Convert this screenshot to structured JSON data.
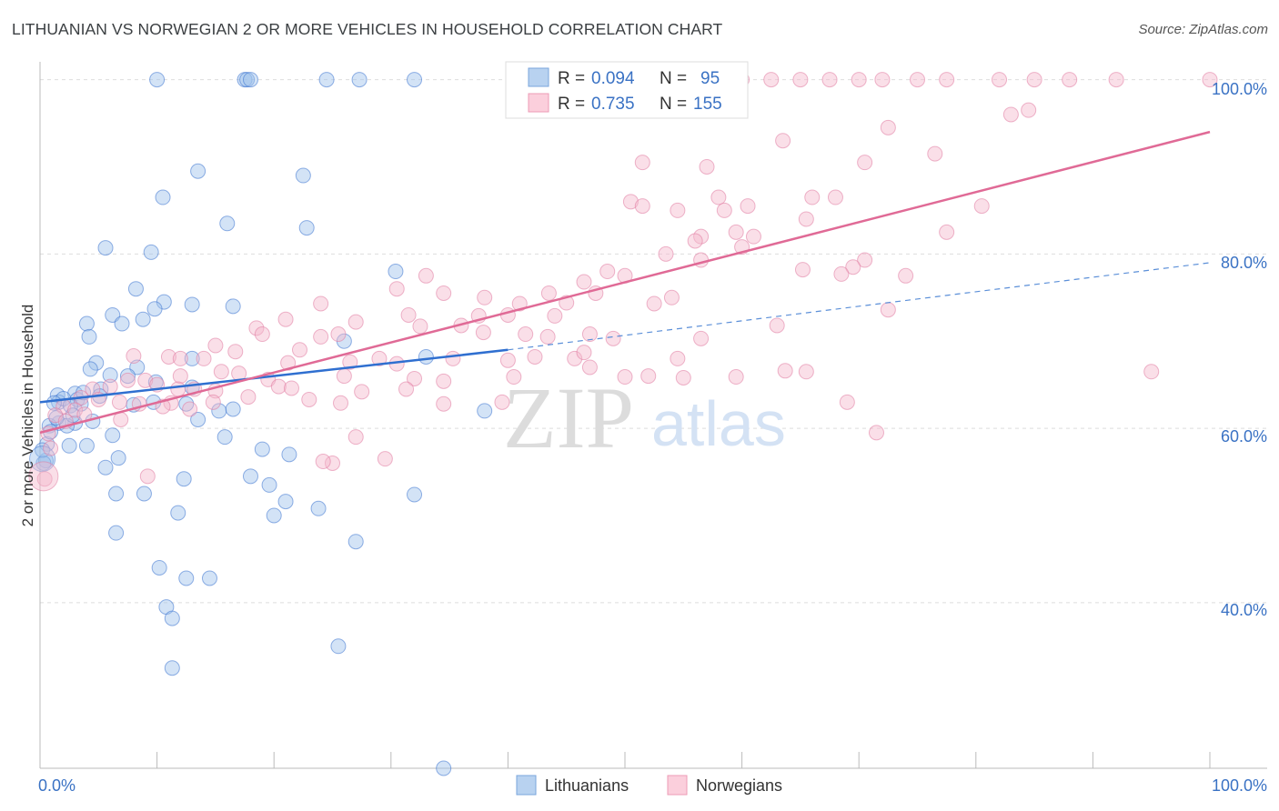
{
  "header": {
    "title": "LITHUANIAN VS NORWEGIAN 2 OR MORE VEHICLES IN HOUSEHOLD CORRELATION CHART",
    "source": "Source: ZipAtlas.com"
  },
  "watermark": {
    "zip": "ZIP",
    "atlas": "atlas"
  },
  "legend_box": {
    "rows": [
      {
        "r_label": "R =",
        "r_value": "0.094",
        "n_label": "N =",
        "n_value": "95",
        "color": "#9ec0ea"
      },
      {
        "r_label": "R =",
        "r_value": "0.735",
        "n_label": "N =",
        "n_value": "155",
        "color": "#f5b8cc"
      }
    ]
  },
  "bottom_legend": [
    {
      "label": "Lithuanians",
      "color": "#9ec0ea"
    },
    {
      "label": "Norwegians",
      "color": "#f5b8cc"
    }
  ],
  "chart_data": {
    "type": "scatter",
    "title": "LITHUANIAN VS NORWEGIAN 2 OR MORE VEHICLES IN HOUSEHOLD CORRELATION CHART",
    "xlabel": "",
    "ylabel": "2 or more Vehicles in Household",
    "xlim": [
      0,
      100
    ],
    "ylim": [
      21,
      101
    ],
    "x_tick_labels": [
      "0.0%",
      "100.0%"
    ],
    "y_ticks": [
      40,
      60,
      80,
      100
    ],
    "y_tick_labels": [
      "40.0%",
      "60.0%",
      "80.0%",
      "100.0%"
    ],
    "grid": true,
    "legend_placement": "top-center",
    "series": [
      {
        "name": "Lithuanians",
        "color": "#3a72d0",
        "fill": "#9ec0ea",
        "trend": {
          "x0": 0,
          "y0": 63,
          "x1": 40,
          "y1": 69,
          "dashed_to_x": 100,
          "dashed_to_y": 79
        },
        "points": [
          [
            10,
            100
          ],
          [
            17.5,
            100
          ],
          [
            17.7,
            100
          ],
          [
            18,
            100
          ],
          [
            24.5,
            100
          ],
          [
            27.3,
            100
          ],
          [
            32,
            100
          ],
          [
            13.5,
            89.5
          ],
          [
            22.5,
            89
          ],
          [
            10.5,
            86.5
          ],
          [
            16,
            83.5
          ],
          [
            22.8,
            83
          ],
          [
            5.6,
            80.7
          ],
          [
            9.5,
            80.2
          ],
          [
            30.4,
            78
          ],
          [
            8.2,
            76
          ],
          [
            10.6,
            74.5
          ],
          [
            16.5,
            74
          ],
          [
            13,
            74.2
          ],
          [
            9.8,
            73.7
          ],
          [
            6.2,
            73
          ],
          [
            8.8,
            72.5
          ],
          [
            7,
            72
          ],
          [
            4,
            72
          ],
          [
            4.2,
            70.5
          ],
          [
            26,
            70
          ],
          [
            13,
            68
          ],
          [
            33,
            68.2
          ],
          [
            4.8,
            67.5
          ],
          [
            8.3,
            67
          ],
          [
            6,
            66.1
          ],
          [
            7.5,
            66
          ],
          [
            9.9,
            65.3
          ],
          [
            13,
            64.7
          ],
          [
            5.2,
            64.5
          ],
          [
            3,
            64
          ],
          [
            1.5,
            63.8
          ],
          [
            1.6,
            63
          ],
          [
            2,
            63.4
          ],
          [
            3.2,
            63.3
          ],
          [
            9.7,
            63
          ],
          [
            12.5,
            62.8
          ],
          [
            15.3,
            62
          ],
          [
            16.5,
            62.2
          ],
          [
            3.5,
            62.8
          ],
          [
            2.6,
            62.6
          ],
          [
            8,
            62.7
          ],
          [
            4.5,
            60.8
          ],
          [
            3,
            60.6
          ],
          [
            1.6,
            60.6
          ],
          [
            0.8,
            60.3
          ],
          [
            2.3,
            60.3
          ],
          [
            13.5,
            61
          ],
          [
            38,
            62
          ],
          [
            6.2,
            59.2
          ],
          [
            15.8,
            59
          ],
          [
            2.5,
            58
          ],
          [
            4,
            58
          ],
          [
            0.6,
            58.2
          ],
          [
            19,
            57.6
          ],
          [
            21.3,
            57
          ],
          [
            6.7,
            56.6
          ],
          [
            0.5,
            56.3
          ],
          [
            0.3,
            56
          ],
          [
            5.6,
            55.5
          ],
          [
            18,
            54.5
          ],
          [
            12.3,
            54.2
          ],
          [
            19.6,
            53.5
          ],
          [
            6.5,
            52.5
          ],
          [
            8.9,
            52.5
          ],
          [
            32,
            52.4
          ],
          [
            21,
            51.6
          ],
          [
            11.8,
            50.3
          ],
          [
            20,
            50
          ],
          [
            23.8,
            50.8
          ],
          [
            6.5,
            48
          ],
          [
            27,
            47
          ],
          [
            10.2,
            44
          ],
          [
            12.5,
            42.8
          ],
          [
            14.5,
            42.8
          ],
          [
            10.8,
            39.5
          ],
          [
            11.3,
            38.2
          ],
          [
            25.5,
            35
          ],
          [
            11.3,
            32.5
          ],
          [
            34.5,
            21
          ],
          [
            0.2,
            57.5
          ],
          [
            2.8,
            61.5
          ],
          [
            4.3,
            66.8
          ],
          [
            5.1,
            63.7
          ],
          [
            1.2,
            62.9
          ],
          [
            3.7,
            64.1
          ],
          [
            0.9,
            59.6
          ],
          [
            1.4,
            61.2
          ]
        ]
      },
      {
        "name": "Norwegians",
        "color": "#e07aa0",
        "fill": "#f5b8cc",
        "trend": {
          "x0": 0,
          "y0": 59.5,
          "x1": 100,
          "y1": 94
        },
        "points": [
          [
            60,
            100
          ],
          [
            62.5,
            100
          ],
          [
            65,
            100
          ],
          [
            67.5,
            100
          ],
          [
            70,
            100
          ],
          [
            72,
            100
          ],
          [
            75,
            100
          ],
          [
            77.5,
            100
          ],
          [
            82,
            100
          ],
          [
            85,
            100
          ],
          [
            88,
            100
          ],
          [
            92,
            100
          ],
          [
            100,
            100
          ],
          [
            83,
            96
          ],
          [
            84.5,
            96.5
          ],
          [
            72.5,
            94.5
          ],
          [
            63.5,
            93
          ],
          [
            76.5,
            91.5
          ],
          [
            70.5,
            90.5
          ],
          [
            51.5,
            90.5
          ],
          [
            57,
            90
          ],
          [
            50.5,
            86
          ],
          [
            51.5,
            85.5
          ],
          [
            58,
            86.5
          ],
          [
            66,
            86.5
          ],
          [
            68,
            86.5
          ],
          [
            60.5,
            85.5
          ],
          [
            54.5,
            85
          ],
          [
            58.5,
            85
          ],
          [
            65.5,
            84
          ],
          [
            80.5,
            85.5
          ],
          [
            77.5,
            82.5
          ],
          [
            56.5,
            82
          ],
          [
            59.5,
            82.5
          ],
          [
            61,
            82
          ],
          [
            56,
            81.5
          ],
          [
            60,
            80.8
          ],
          [
            53.5,
            80
          ],
          [
            56.5,
            79.3
          ],
          [
            70.5,
            79.3
          ],
          [
            69.5,
            78.5
          ],
          [
            68.5,
            77.7
          ],
          [
            33,
            77.5
          ],
          [
            48.5,
            78
          ],
          [
            50,
            77.5
          ],
          [
            46.5,
            76.8
          ],
          [
            30.5,
            76
          ],
          [
            34.5,
            75.5
          ],
          [
            38,
            75
          ],
          [
            43.5,
            75.5
          ],
          [
            47.5,
            75.5
          ],
          [
            54,
            75
          ],
          [
            45,
            74.4
          ],
          [
            41,
            74.3
          ],
          [
            52.5,
            74.3
          ],
          [
            24,
            74.3
          ],
          [
            31.5,
            73
          ],
          [
            37.5,
            72.9
          ],
          [
            40,
            73
          ],
          [
            44,
            72.9
          ],
          [
            72.5,
            73.6
          ],
          [
            21,
            72.5
          ],
          [
            27,
            72.2
          ],
          [
            32.5,
            71.7
          ],
          [
            36,
            71.8
          ],
          [
            37.9,
            71
          ],
          [
            41.5,
            70.8
          ],
          [
            43.4,
            70.5
          ],
          [
            47,
            70.8
          ],
          [
            56.5,
            70.3
          ],
          [
            49,
            70.3
          ],
          [
            63,
            71.8
          ],
          [
            18.5,
            71.5
          ],
          [
            19,
            70.8
          ],
          [
            24,
            70.5
          ],
          [
            25.5,
            70.8
          ],
          [
            22.2,
            69
          ],
          [
            15,
            69.5
          ],
          [
            16.7,
            68.8
          ],
          [
            8,
            68.3
          ],
          [
            11,
            68.2
          ],
          [
            12,
            68
          ],
          [
            14,
            68
          ],
          [
            21.2,
            67.5
          ],
          [
            26.5,
            67.6
          ],
          [
            29,
            68
          ],
          [
            30.5,
            67.4
          ],
          [
            35.3,
            68
          ],
          [
            40,
            67.8
          ],
          [
            42.3,
            68.2
          ],
          [
            45.7,
            68
          ],
          [
            46.5,
            68.7
          ],
          [
            47,
            67
          ],
          [
            54.5,
            68
          ],
          [
            65.5,
            66.5
          ],
          [
            95,
            66.5
          ],
          [
            15.5,
            66.5
          ],
          [
            17,
            66.3
          ],
          [
            19.5,
            65.6
          ],
          [
            12,
            66
          ],
          [
            26,
            66
          ],
          [
            32,
            65.7
          ],
          [
            34.5,
            65.4
          ],
          [
            40.5,
            65.9
          ],
          [
            50,
            65.9
          ],
          [
            52,
            66
          ],
          [
            55,
            65.8
          ],
          [
            59.5,
            65.9
          ],
          [
            63.7,
            66.6
          ],
          [
            7.5,
            65.5
          ],
          [
            9,
            65.5
          ],
          [
            10,
            65
          ],
          [
            11.8,
            64.5
          ],
          [
            13.2,
            64.5
          ],
          [
            6,
            64.8
          ],
          [
            4.5,
            64.5
          ],
          [
            15,
            64.3
          ],
          [
            20.4,
            64.8
          ],
          [
            21.5,
            64.6
          ],
          [
            27.5,
            64.2
          ],
          [
            31.3,
            64.5
          ],
          [
            3.5,
            63.5
          ],
          [
            5,
            63.3
          ],
          [
            6.8,
            63
          ],
          [
            8.5,
            62.8
          ],
          [
            11.2,
            62.9
          ],
          [
            14.8,
            63
          ],
          [
            17.8,
            63.6
          ],
          [
            23,
            63.3
          ],
          [
            25.7,
            62.9
          ],
          [
            34.5,
            62.8
          ],
          [
            39.5,
            63
          ],
          [
            69,
            63
          ],
          [
            2,
            62.5
          ],
          [
            3,
            62.1
          ],
          [
            10.5,
            62.5
          ],
          [
            12.8,
            62.2
          ],
          [
            1.3,
            61.5
          ],
          [
            3.8,
            61.6
          ],
          [
            6.9,
            61
          ],
          [
            27,
            59
          ],
          [
            71.5,
            59.5
          ],
          [
            29.5,
            56.5
          ],
          [
            25,
            56
          ],
          [
            24.2,
            56.2
          ],
          [
            9.2,
            54.5
          ],
          [
            0.4,
            54.2
          ],
          [
            0.7,
            59.4
          ],
          [
            0.9,
            57.7
          ],
          [
            2.2,
            60.8
          ],
          [
            65.2,
            78.2
          ],
          [
            74,
            77.5
          ]
        ]
      }
    ]
  }
}
